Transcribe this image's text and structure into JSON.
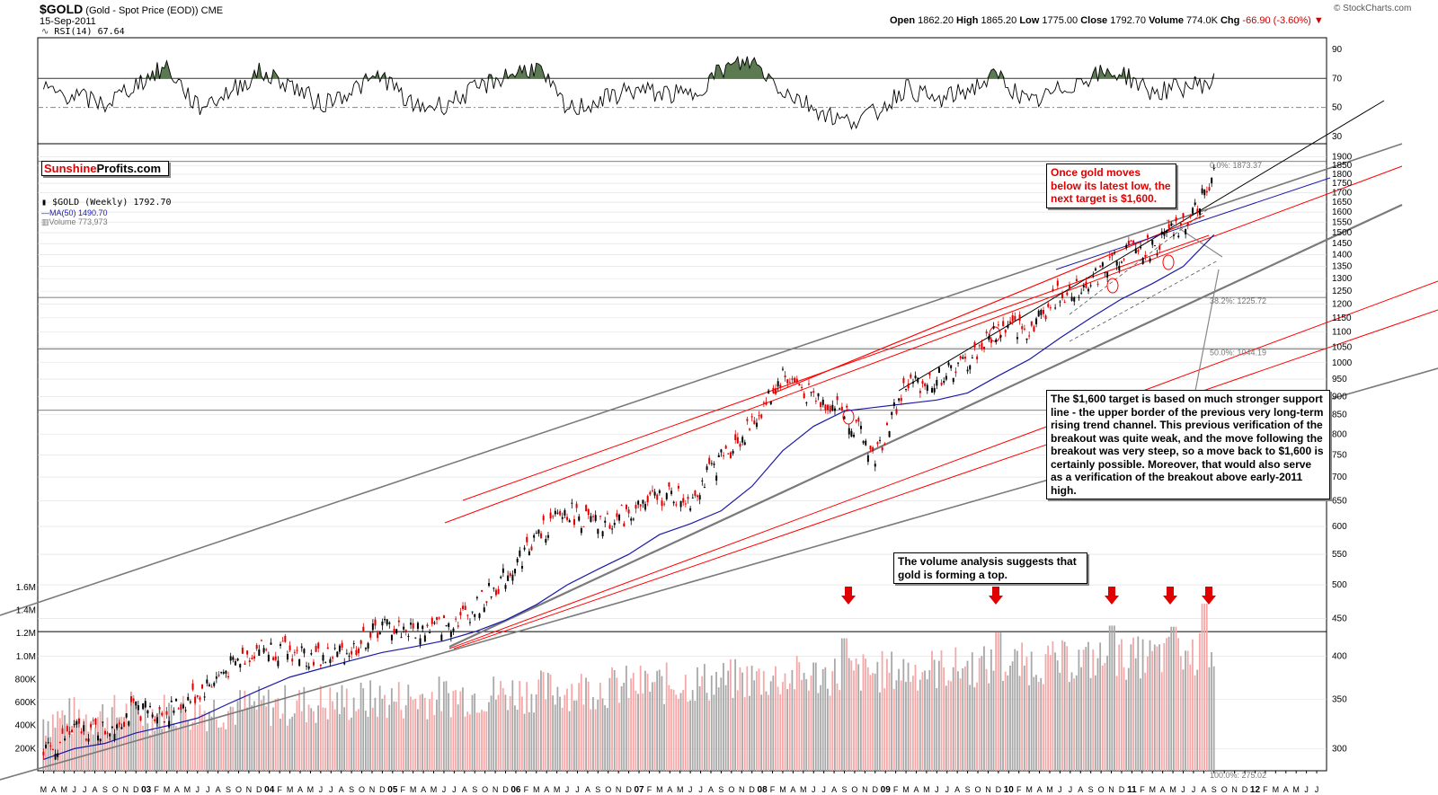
{
  "header": {
    "symbol": "$GOLD",
    "description": "(Gold - Spot Price (EOD))",
    "exchange": "CME",
    "date": "15-Sep-2011",
    "watermark": "© StockCharts.com",
    "ohlc": [
      {
        "label": "Open",
        "value": "1862.20"
      },
      {
        "label": "High",
        "value": "1865.20"
      },
      {
        "label": "Low",
        "value": "1775.00"
      },
      {
        "label": "Close",
        "value": "1792.70"
      },
      {
        "label": "Volume",
        "value": "774.0K"
      },
      {
        "label": "Chg",
        "value": "-66.90 (-3.60%)"
      }
    ],
    "chg_arrow": "▼"
  },
  "rsi_legend": "RSI(14) 67.64",
  "price_legend": {
    "main": "$GOLD (Weekly) 1792.70",
    "ma": "MA(50) 1490.70",
    "volume": "Volume 773,973"
  },
  "logo": {
    "part1": "Sunshine",
    "part2": "Profits.com"
  },
  "annotations": {
    "target": "Once gold moves below its latest low, the next target is $1,600.",
    "support": "The $1,600 target is based on much stronger support line - the upper border of the previous very long-term rising trend channel. This previous verification of the breakout was quite weak, and the move following the breakout was very steep, so a move back to $1,600 is certainly possible. Moreover, that would also serve as a verification of the breakout above early-2011 high.",
    "volume": "The volume analysis suggests that gold is forming a top."
  },
  "fib_labels": [
    "0.0%: 1873.37",
    "38.2%: 1225.72",
    "50.0%: 1044.19",
    "100.0%: 275.02"
  ],
  "colors": {
    "up": "#000000",
    "down": "#e00000",
    "ma": "#1a1aa8",
    "trend_red": "#ff0000",
    "trend_gray": "#7a7a7a",
    "rsi_fill": "#5c7a52",
    "vol_up": "#a8a8a8",
    "vol_down": "#f4a8a8"
  },
  "chart_data": [
    {
      "type": "line",
      "name": "RSI(14)",
      "x": [
        "2002-03",
        "2002-06",
        "2002-09",
        "2002-12",
        "2003-03",
        "2003-06",
        "2003-09",
        "2003-12",
        "2004-03",
        "2004-06",
        "2004-09",
        "2004-12",
        "2005-03",
        "2005-06",
        "2005-09",
        "2005-12",
        "2006-03",
        "2006-06",
        "2006-09",
        "2006-12",
        "2007-03",
        "2007-06",
        "2007-09",
        "2007-12",
        "2008-03",
        "2008-06",
        "2008-09",
        "2008-12",
        "2009-03",
        "2009-06",
        "2009-09",
        "2009-12",
        "2010-03",
        "2010-06",
        "2010-09",
        "2010-12",
        "2011-03",
        "2011-06",
        "2011-09"
      ],
      "values": [
        62,
        58,
        52,
        66,
        78,
        50,
        60,
        74,
        66,
        52,
        62,
        72,
        50,
        52,
        62,
        72,
        78,
        48,
        54,
        62,
        60,
        58,
        76,
        82,
        62,
        50,
        40,
        46,
        64,
        54,
        62,
        72,
        52,
        62,
        72,
        74,
        60,
        64,
        67.64
      ],
      "ylim": [
        25,
        98
      ],
      "yticks": [
        30,
        50,
        70,
        90
      ],
      "reference_lines": [
        70,
        50
      ]
    },
    {
      "type": "line",
      "name": "$GOLD (Weekly)",
      "x": [
        "2002-03",
        "2002-06",
        "2002-09",
        "2002-12",
        "2003-03",
        "2003-06",
        "2003-09",
        "2003-12",
        "2004-03",
        "2004-06",
        "2004-09",
        "2004-12",
        "2005-03",
        "2005-06",
        "2005-09",
        "2005-12",
        "2006-03",
        "2006-06",
        "2006-09",
        "2006-12",
        "2007-03",
        "2007-06",
        "2007-09",
        "2007-12",
        "2008-03",
        "2008-06",
        "2008-09",
        "2008-12",
        "2009-03",
        "2009-06",
        "2009-09",
        "2009-12",
        "2010-03",
        "2010-06",
        "2010-09",
        "2010-12",
        "2011-03",
        "2011-06",
        "2011-09"
      ],
      "values": [
        292,
        318,
        318,
        340,
        335,
        356,
        385,
        412,
        405,
        398,
        408,
        440,
        433,
        440,
        463,
        513,
        580,
        630,
        600,
        625,
        660,
        655,
        740,
        820,
        960,
        900,
        860,
        740,
        930,
        950,
        1000,
        1110,
        1110,
        1240,
        1290,
        1410,
        1430,
        1530,
        1792.7
      ],
      "ma50": [
        290,
        300,
        305,
        315,
        322,
        330,
        345,
        360,
        375,
        385,
        395,
        405,
        412,
        420,
        432,
        448,
        470,
        500,
        525,
        550,
        585,
        605,
        630,
        680,
        760,
        820,
        860,
        870,
        880,
        890,
        910,
        960,
        1010,
        1080,
        1150,
        1220,
        1280,
        1350,
        1490.7
      ],
      "scale": "log",
      "yticks": [
        300,
        350,
        400,
        450,
        500,
        550,
        600,
        650,
        700,
        750,
        800,
        850,
        900,
        950,
        1000,
        1050,
        1100,
        1150,
        1200,
        1250,
        1300,
        1350,
        1400,
        1450,
        1500,
        1550,
        1600,
        1650,
        1700,
        1750,
        1800,
        1850,
        1900
      ],
      "ylim": [
        280,
        1980
      ]
    },
    {
      "type": "bar",
      "name": "Volume",
      "yticks": [
        "200K",
        "400K",
        "600K",
        "800K",
        "1.0M",
        "1.2M",
        "1.4M",
        "1.6M"
      ],
      "ylim": [
        0,
        1700000
      ],
      "volume_peaks": [
        {
          "x": "2008-09",
          "value": 1150000
        },
        {
          "x": "2009-12",
          "value": 1200000
        },
        {
          "x": "2010-11",
          "value": 1260000
        },
        {
          "x": "2011-05",
          "value": 1250000
        },
        {
          "x": "2011-08",
          "value": 1450000
        }
      ]
    },
    {
      "type": "line",
      "name": "x-axis",
      "year_labels": [
        "03",
        "04",
        "05",
        "06",
        "07",
        "08",
        "09",
        "10",
        "11",
        "12"
      ],
      "month_labels": [
        "M",
        "A",
        "M",
        "J",
        "J",
        "A",
        "S",
        "O",
        "N",
        "D"
      ]
    }
  ]
}
